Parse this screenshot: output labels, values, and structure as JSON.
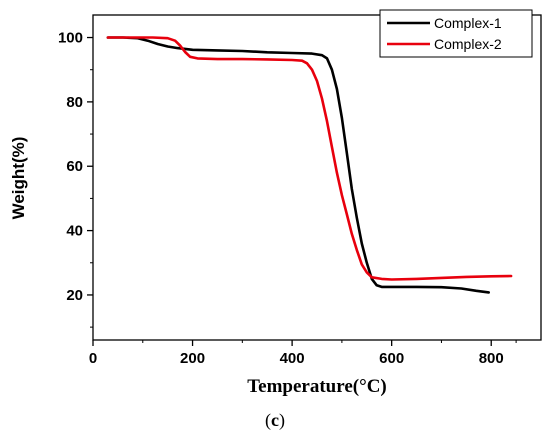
{
  "chart_data": {
    "type": "line",
    "title": "",
    "xlabel": "Temperature(°C)",
    "ylabel": "Weight(%)",
    "xlim": [
      0,
      900
    ],
    "ylim": [
      6,
      107
    ],
    "xticks": [
      0,
      200,
      400,
      600,
      800
    ],
    "yticks": [
      20,
      40,
      60,
      80,
      100
    ],
    "grid": false,
    "legend_position": "top-right",
    "series": [
      {
        "name": "Complex-1",
        "color": "#000000",
        "points": [
          [
            30,
            100
          ],
          [
            60,
            100
          ],
          [
            90,
            99.8
          ],
          [
            110,
            99
          ],
          [
            130,
            98
          ],
          [
            150,
            97.2
          ],
          [
            170,
            96.7
          ],
          [
            200,
            96.2
          ],
          [
            250,
            96
          ],
          [
            300,
            95.8
          ],
          [
            350,
            95.4
          ],
          [
            400,
            95.2
          ],
          [
            440,
            95
          ],
          [
            460,
            94.5
          ],
          [
            470,
            93.5
          ],
          [
            480,
            90
          ],
          [
            490,
            84
          ],
          [
            500,
            75
          ],
          [
            510,
            64
          ],
          [
            520,
            53
          ],
          [
            530,
            44
          ],
          [
            540,
            36
          ],
          [
            550,
            30
          ],
          [
            560,
            25
          ],
          [
            570,
            23
          ],
          [
            580,
            22.5
          ],
          [
            600,
            22.5
          ],
          [
            650,
            22.5
          ],
          [
            700,
            22.4
          ],
          [
            740,
            22
          ],
          [
            770,
            21.3
          ],
          [
            795,
            20.8
          ]
        ]
      },
      {
        "name": "Complex-2",
        "color": "#e8000d",
        "points": [
          [
            30,
            100
          ],
          [
            80,
            100
          ],
          [
            120,
            100
          ],
          [
            150,
            99.8
          ],
          [
            165,
            99
          ],
          [
            175,
            97.5
          ],
          [
            185,
            95.5
          ],
          [
            195,
            94
          ],
          [
            210,
            93.5
          ],
          [
            250,
            93.3
          ],
          [
            300,
            93.3
          ],
          [
            350,
            93.2
          ],
          [
            400,
            93
          ],
          [
            420,
            92.8
          ],
          [
            430,
            92
          ],
          [
            440,
            90
          ],
          [
            450,
            86.5
          ],
          [
            460,
            81
          ],
          [
            470,
            74
          ],
          [
            480,
            66
          ],
          [
            490,
            58
          ],
          [
            500,
            51
          ],
          [
            510,
            45
          ],
          [
            520,
            39
          ],
          [
            530,
            34
          ],
          [
            540,
            29.5
          ],
          [
            550,
            27
          ],
          [
            560,
            25.5
          ],
          [
            580,
            25
          ],
          [
            600,
            24.8
          ],
          [
            650,
            25
          ],
          [
            700,
            25.3
          ],
          [
            750,
            25.6
          ],
          [
            800,
            25.8
          ],
          [
            840,
            25.9
          ]
        ]
      }
    ]
  },
  "caption": {
    "open": "(",
    "letter": "c",
    "close": ")"
  }
}
